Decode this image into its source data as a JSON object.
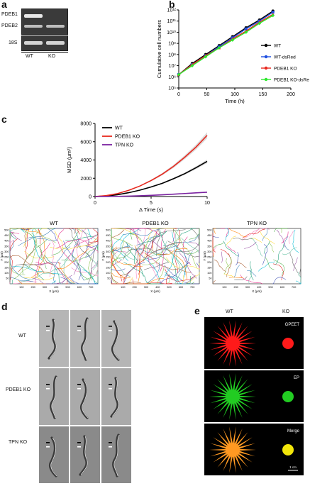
{
  "panels": {
    "a": {
      "letter": "a",
      "bands": [
        "PDEB1",
        "PDEB2",
        "18S"
      ],
      "lanes": [
        "WT",
        "KO"
      ]
    },
    "b": {
      "letter": "b"
    },
    "c": {
      "letter": "c",
      "track_titles": [
        "WT",
        "PDEB1 KO",
        "TPN KO"
      ],
      "track_xlabel": "X (μm)",
      "track_ylabel": "Y (μm)",
      "track_xticks": [
        "100",
        "200",
        "300",
        "400",
        "500",
        "600",
        "700"
      ],
      "track_yticks": [
        "50",
        "100",
        "150",
        "200",
        "250",
        "300",
        "350",
        "400",
        "450",
        "500"
      ]
    },
    "d": {
      "letter": "d",
      "rows": [
        "WT",
        "PDEB1 KO",
        "TPN KO"
      ]
    },
    "e": {
      "letter": "e",
      "cols": [
        "WT",
        "KO"
      ],
      "channels": [
        "GPEET",
        "EP",
        "Merge"
      ],
      "scale": "1 cm",
      "colors": {
        "GPEET": "#ff1a1a",
        "EP": "#22cc22",
        "Merge": "#ff9922",
        "Merge_ko": "#f2e60a"
      }
    }
  },
  "chart_data": [
    {
      "type": "line",
      "panel": "b",
      "xlabel": "Time (h)",
      "ylabel": "Cumulative cell numbers",
      "xlim": [
        0,
        200
      ],
      "xticks": [
        "0",
        "50",
        "100",
        "150",
        "200"
      ],
      "yscale": "log",
      "ylim_exp": [
        5,
        12
      ],
      "yticks": [
        "10⁵",
        "10⁶",
        "10⁷",
        "10⁸",
        "10⁹",
        "10¹⁰",
        "10¹¹",
        "10¹²"
      ],
      "legend_position": "right",
      "x": [
        0,
        24,
        48,
        72,
        96,
        120,
        144,
        168
      ],
      "series": [
        {
          "name": "WT",
          "color": "#000000",
          "marker": "circle",
          "values_log10": [
            6.2,
            7.2,
            8.0,
            8.8,
            9.6,
            10.4,
            11.1,
            11.9
          ]
        },
        {
          "name": "WT-dsRed",
          "color": "#1f4fe0",
          "marker": "square",
          "values_log10": [
            6.2,
            7.1,
            7.9,
            8.7,
            9.5,
            10.3,
            11.0,
            11.8
          ]
        },
        {
          "name": "PDEB1 KO",
          "color": "#e8281e",
          "marker": "triangle",
          "values_log10": [
            6.2,
            7.1,
            7.9,
            8.6,
            9.4,
            10.1,
            10.9,
            11.6
          ]
        },
        {
          "name": "PDEB1 KO-dsRed",
          "color": "#2ee82e",
          "marker": "diamond",
          "values_log10": [
            6.2,
            7.0,
            7.8,
            8.6,
            9.3,
            10.0,
            10.8,
            11.5
          ]
        }
      ]
    },
    {
      "type": "line",
      "panel": "c",
      "xlabel": "Δ Time (s)",
      "ylabel": "MSD (μm²)",
      "xlim": [
        0,
        10
      ],
      "ylim": [
        0,
        8000
      ],
      "xticks": [
        "0",
        "5",
        "10"
      ],
      "yticks": [
        "0",
        "2000",
        "4000",
        "6000",
        "8000"
      ],
      "legend_position": "top-left",
      "x": [
        0,
        1,
        2,
        3,
        4,
        5,
        6,
        7,
        8,
        9,
        10
      ],
      "series": [
        {
          "name": "WT",
          "color": "#000000",
          "values": [
            0,
            60,
            200,
            420,
            700,
            1050,
            1450,
            1950,
            2500,
            3150,
            3850
          ]
        },
        {
          "name": "PDEB1 KO",
          "color": "#e8281e",
          "values": [
            0,
            100,
            320,
            680,
            1150,
            1750,
            2450,
            3300,
            4300,
            5400,
            6700
          ]
        },
        {
          "name": "TPN KO",
          "color": "#7a22a0",
          "values": [
            0,
            5,
            20,
            45,
            80,
            130,
            190,
            260,
            330,
            400,
            470
          ]
        }
      ]
    }
  ]
}
